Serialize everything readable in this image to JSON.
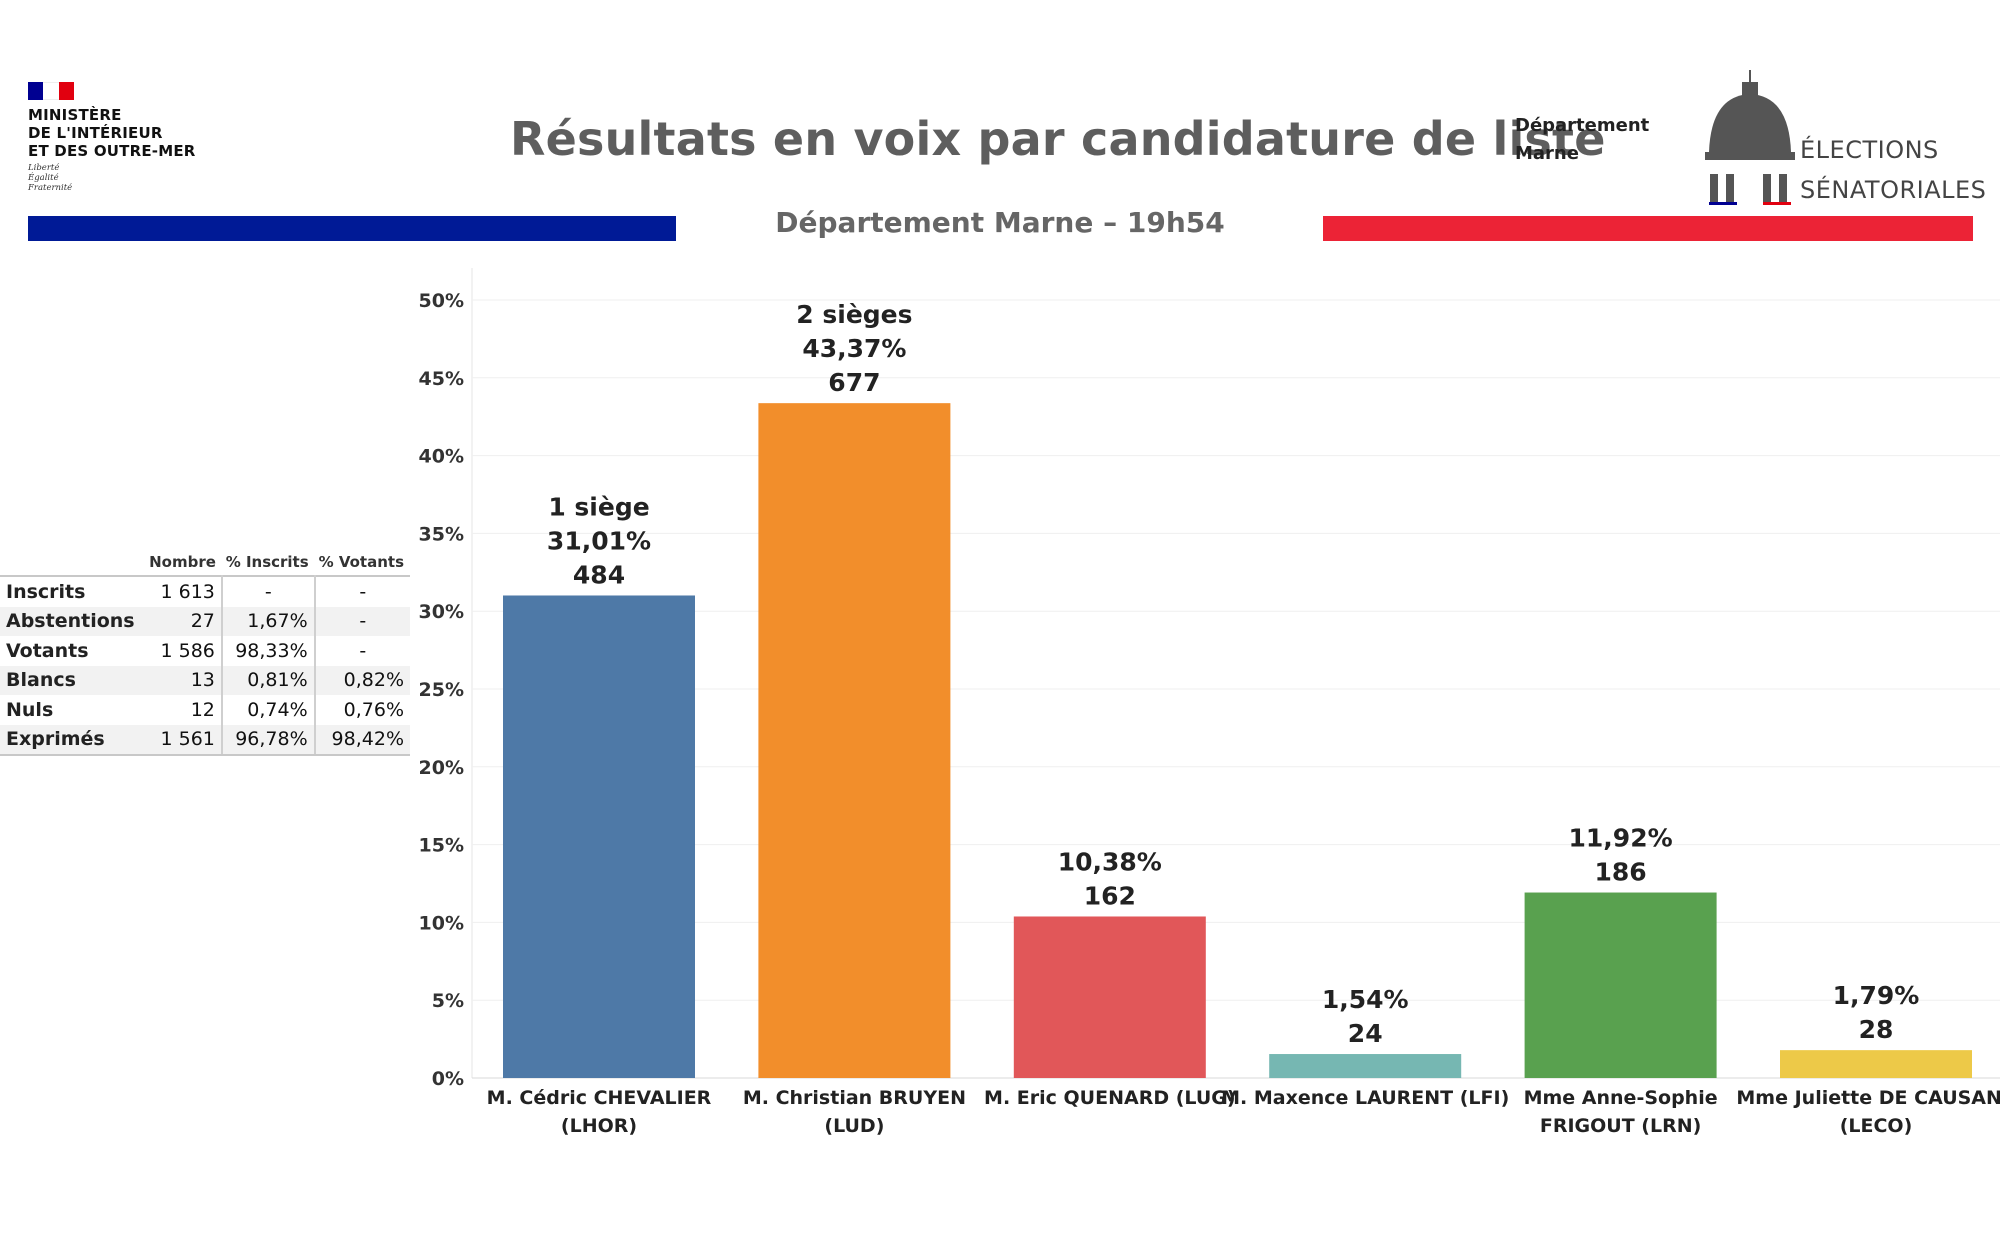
{
  "header": {
    "ministry_lines": [
      "MINISTÈRE",
      "DE L'INTÉRIEUR",
      "ET DES OUTRE-MER"
    ],
    "motto_lines": [
      "Liberté",
      "Égalité",
      "Fraternité"
    ],
    "title": "Résultats en voix par candidature de liste",
    "dept_label_lines": [
      "Département",
      "Marne"
    ],
    "subtitle": "Département Marne – 19h54",
    "elections_lines": [
      "ÉLECTIONS",
      "SÉNATORIALES"
    ]
  },
  "colors": {
    "flag_blue": "#000091",
    "flag_red": "#e1000f",
    "bar_blue": "#001a96",
    "bar_red": "#ec2336",
    "text_grey": "#5e5e5e"
  },
  "stats": {
    "headers": [
      "",
      "Nombre",
      "% Inscrits",
      "% Votants"
    ],
    "rows": [
      {
        "label": "Inscrits",
        "nombre": "1 613",
        "pct_inscrits": "-",
        "pct_votants": "-"
      },
      {
        "label": "Abstentions",
        "nombre": "27",
        "pct_inscrits": "1,67%",
        "pct_votants": "-"
      },
      {
        "label": "Votants",
        "nombre": "1 586",
        "pct_inscrits": "98,33%",
        "pct_votants": "-"
      },
      {
        "label": "Blancs",
        "nombre": "13",
        "pct_inscrits": "0,81%",
        "pct_votants": "0,82%"
      },
      {
        "label": "Nuls",
        "nombre": "12",
        "pct_inscrits": "0,74%",
        "pct_votants": "0,76%"
      },
      {
        "label": "Exprimés",
        "nombre": "1 561",
        "pct_inscrits": "96,78%",
        "pct_votants": "98,42%"
      }
    ]
  },
  "chart_data": {
    "type": "bar",
    "title": "Résultats en voix par candidature de liste",
    "ylim": [
      0,
      50
    ],
    "yticks": [
      "0%",
      "5%",
      "10%",
      "15%",
      "20%",
      "25%",
      "30%",
      "35%",
      "40%",
      "45%",
      "50%"
    ],
    "grid": true,
    "categories": [
      [
        "M. Cédric CHEVALIER",
        "(LHOR)"
      ],
      [
        "M. Christian BRUYEN",
        "(LUD)"
      ],
      [
        "M. Eric QUENARD (LUG)"
      ],
      [
        "M. Maxence LAURENT (LFI)"
      ],
      [
        "Mme Anne-Sophie",
        "FRIGOUT (LRN)"
      ],
      [
        "Mme Juliette DE CAUSANS",
        "(LECO)"
      ]
    ],
    "values": [
      31.01,
      43.37,
      10.38,
      1.54,
      11.92,
      1.79
    ],
    "votes": [
      484,
      677,
      162,
      24,
      186,
      28
    ],
    "labels": [
      [
        "1 siège",
        "31,01%",
        "484"
      ],
      [
        "2 sièges",
        "43,37%",
        "677"
      ],
      [
        "10,38%",
        "162"
      ],
      [
        "1,54%",
        "24"
      ],
      [
        "11,92%",
        "186"
      ],
      [
        "1,79%",
        "28"
      ]
    ],
    "colors": [
      "#4e79a7",
      "#f28e2b",
      "#e15759",
      "#76b7b2",
      "#59a14f",
      "#edc948"
    ]
  }
}
